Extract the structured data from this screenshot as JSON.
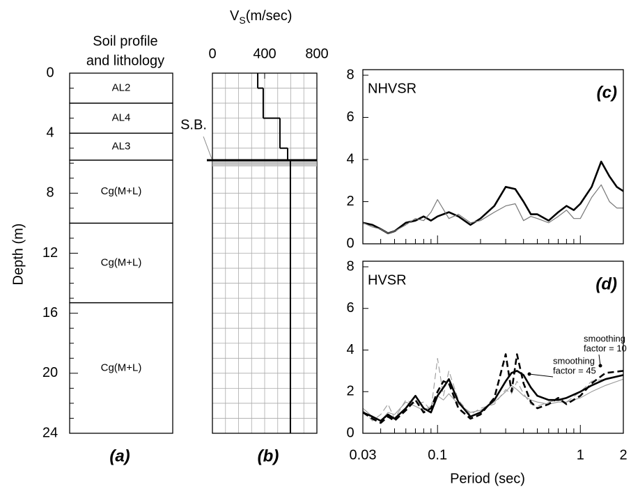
{
  "chart_data": [
    {
      "type": "soil-profile",
      "title": [
        "Soil profile",
        "and lithology"
      ],
      "ylabel": "Depth (m)",
      "panel": "(a)",
      "ylim": [
        0,
        24
      ],
      "yticks": [
        0,
        4,
        8,
        12,
        16,
        20,
        24
      ],
      "yminorticks": [
        1,
        2,
        3,
        5,
        6,
        7,
        9,
        10,
        11,
        13,
        14,
        15,
        17,
        18,
        19,
        21,
        22,
        23
      ],
      "layers": [
        {
          "top": 0,
          "bottom": 2,
          "label": "AL2"
        },
        {
          "top": 2,
          "bottom": 4,
          "label": "AL4"
        },
        {
          "top": 4,
          "bottom": 5.8,
          "label": "AL3"
        },
        {
          "top": 5.8,
          "bottom": 10,
          "label": "Cg(M+L)"
        },
        {
          "top": 10,
          "bottom": 15.3,
          "label": "Cg(M+L)"
        },
        {
          "top": 15.3,
          "bottom": 24,
          "label": "Cg(M+L)"
        }
      ]
    },
    {
      "type": "step",
      "title": [
        "V",
        "S",
        "(m/sec)"
      ],
      "panel": "(b)",
      "xlim": [
        0,
        800
      ],
      "xticks": [
        0,
        400,
        800
      ],
      "ylim": [
        0,
        24
      ],
      "xgrid": [
        100,
        200,
        300,
        400,
        500,
        600,
        700
      ],
      "ygrid": [
        1,
        2,
        3,
        4,
        5,
        6,
        7,
        8,
        9,
        10,
        11,
        12,
        13,
        14,
        15,
        16,
        17,
        18,
        19,
        20,
        21,
        22,
        23
      ],
      "depth_top": [
        0,
        1,
        3,
        5,
        5.8
      ],
      "depth_bottom": [
        1,
        3,
        5,
        5.8,
        24
      ],
      "values": [
        347,
        389,
        517,
        576,
        597
      ],
      "color": "#000000",
      "boundary_depth": 5.8,
      "boundary_label": "S.B."
    },
    {
      "type": "line",
      "label": "NHVSR",
      "panel": "(c)",
      "log_x": true,
      "xlim": [
        0.03,
        2
      ],
      "ylim": [
        0,
        8
      ],
      "yticks": [
        0,
        2,
        4,
        6,
        8
      ],
      "xtickmarks": [
        0.04,
        0.05,
        0.06,
        0.07,
        0.08,
        0.09,
        0.1,
        0.2,
        0.3,
        0.4,
        0.5,
        0.6,
        0.7,
        0.8,
        0.9,
        1
      ],
      "x": [
        0.03,
        0.035,
        0.04,
        0.045,
        0.05,
        0.06,
        0.07,
        0.08,
        0.09,
        0.1,
        0.12,
        0.14,
        0.17,
        0.2,
        0.25,
        0.3,
        0.35,
        0.4,
        0.45,
        0.5,
        0.6,
        0.7,
        0.8,
        0.9,
        1.0,
        1.2,
        1.4,
        1.6,
        1.8,
        2.0
      ],
      "series": [
        {
          "color": "#000000",
          "width": 2.6,
          "dash": false,
          "values": [
            1.0,
            0.9,
            0.7,
            0.5,
            0.6,
            1.0,
            1.1,
            1.3,
            1.1,
            1.3,
            1.5,
            1.3,
            0.9,
            1.2,
            1.8,
            2.7,
            2.6,
            2.0,
            1.4,
            1.4,
            1.1,
            1.5,
            1.8,
            1.6,
            1.9,
            2.7,
            3.9,
            3.2,
            2.7,
            2.5
          ]
        },
        {
          "color": "#777777",
          "width": 1.2,
          "dash": false,
          "values": [
            1.0,
            0.8,
            0.7,
            0.5,
            0.6,
            0.9,
            1.2,
            1.1,
            1.5,
            2.1,
            1.2,
            1.4,
            1.0,
            1.1,
            1.5,
            1.8,
            1.9,
            1.1,
            1.3,
            1.2,
            1.0,
            1.3,
            1.6,
            1.2,
            1.2,
            2.2,
            2.8,
            2.0,
            1.7,
            1.7
          ]
        }
      ]
    },
    {
      "type": "line",
      "label": "HVSR",
      "panel": "(d)",
      "log_x": true,
      "xlabel": "Period (sec)",
      "xlim": [
        0.03,
        2
      ],
      "ylim": [
        0,
        8
      ],
      "yticks": [
        0,
        2,
        4,
        6,
        8
      ],
      "xticks": [
        0.03,
        0.1,
        1,
        2
      ],
      "xtickmarks": [
        0.04,
        0.05,
        0.06,
        0.07,
        0.08,
        0.09,
        0.1,
        0.2,
        0.3,
        0.4,
        0.5,
        0.6,
        0.7,
        0.8,
        0.9,
        1
      ],
      "x": [
        0.03,
        0.035,
        0.04,
        0.045,
        0.05,
        0.06,
        0.07,
        0.08,
        0.09,
        0.1,
        0.11,
        0.12,
        0.14,
        0.17,
        0.2,
        0.25,
        0.3,
        0.33,
        0.36,
        0.4,
        0.45,
        0.5,
        0.6,
        0.7,
        0.8,
        1.0,
        1.2,
        1.5,
        2.0
      ],
      "series": [
        {
          "color": "#999999",
          "width": 1.1,
          "dash": false,
          "values": [
            1.2,
            0.8,
            0.6,
            1.0,
            0.9,
            1.5,
            1.3,
            1.1,
            1.3,
            1.8,
            1.6,
            1.9,
            1.4,
            1.0,
            1.1,
            1.5,
            2.0,
            2.3,
            2.1,
            1.8,
            1.6,
            1.5,
            1.4,
            1.5,
            1.5,
            1.7,
            2.0,
            2.3,
            2.6
          ]
        },
        {
          "color": "#999999",
          "width": 1.1,
          "dash": true,
          "values": [
            1.1,
            0.6,
            0.9,
            1.4,
            0.7,
            1.6,
            1.4,
            1.5,
            1.1,
            3.6,
            1.8,
            3.0,
            1.6,
            0.9,
            1.2,
            1.4,
            2.1,
            1.9,
            2.5,
            1.9,
            1.4,
            1.3,
            1.5,
            1.6,
            1.5,
            2.0,
            2.5,
            2.6,
            2.8
          ]
        },
        {
          "color": "#000000",
          "width": 2.6,
          "dash": true,
          "values": [
            1.0,
            0.7,
            0.5,
            0.8,
            0.6,
            1.1,
            1.6,
            1.0,
            1.2,
            2.0,
            2.5,
            2.4,
            1.2,
            0.7,
            0.9,
            1.7,
            3.8,
            2.0,
            3.8,
            2.4,
            1.5,
            1.2,
            1.4,
            1.7,
            1.4,
            1.8,
            2.4,
            2.9,
            3.0
          ]
        },
        {
          "color": "#000000",
          "width": 2.6,
          "dash": false,
          "values": [
            1.0,
            0.8,
            0.6,
            0.9,
            0.7,
            1.2,
            1.8,
            1.2,
            1.0,
            1.8,
            2.2,
            2.6,
            1.5,
            0.8,
            1.0,
            1.6,
            2.5,
            2.9,
            3.0,
            2.8,
            2.2,
            1.8,
            1.6,
            1.6,
            1.7,
            2.0,
            2.3,
            2.6,
            2.8
          ]
        }
      ],
      "annotations": [
        [
          "smoothing",
          "factor = 10"
        ],
        [
          "smoothing",
          "factor = 45"
        ]
      ]
    }
  ]
}
